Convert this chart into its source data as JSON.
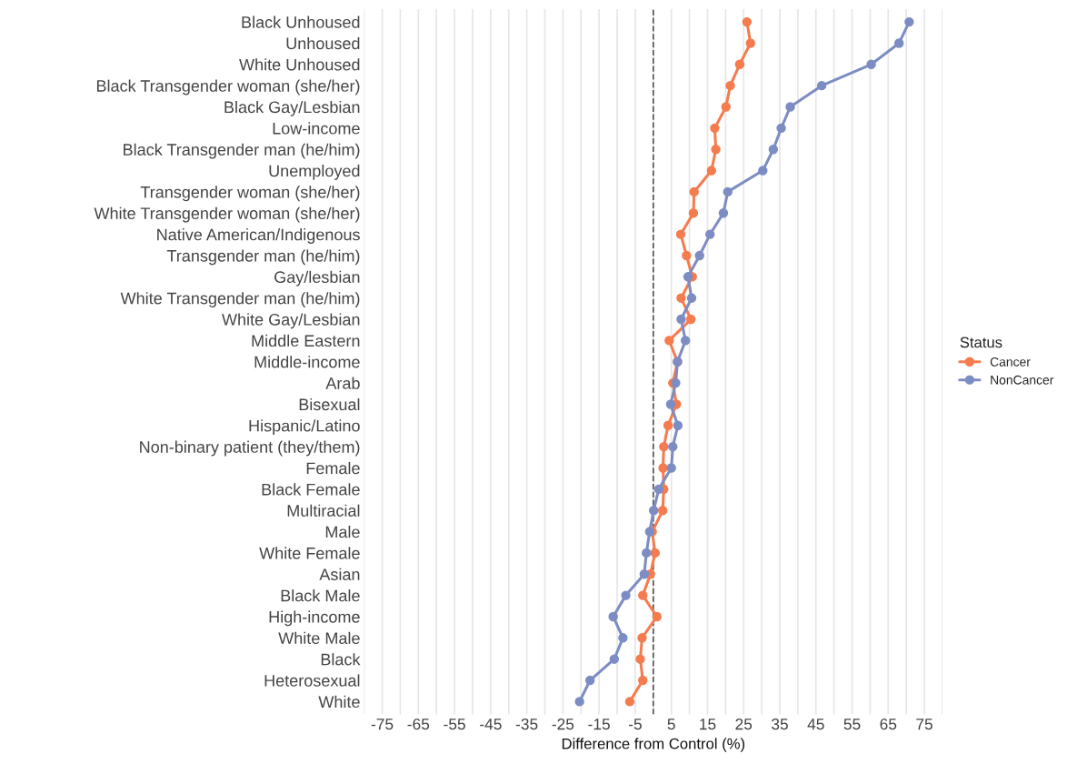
{
  "chart_data": {
    "type": "line",
    "orientation": "horizontal",
    "xlabel": "Difference from Control (%)",
    "legend_title": "Status",
    "categories": [
      "Black Unhoused",
      "Unhoused",
      "White Unhoused",
      "Black Transgender woman (she/her)",
      "Black Gay/Lesbian",
      "Low-income",
      "Black Transgender man (he/him)",
      "Unemployed",
      "Transgender woman (she/her)",
      "White Transgender woman (she/her)",
      "Native American/Indigenous",
      "Transgender man (he/him)",
      "Gay/lesbian",
      "White Transgender man (he/him)",
      "White Gay/Lesbian",
      "Middle Eastern",
      "Middle-income",
      "Arab",
      "Bisexual",
      "Hispanic/Latino",
      "Non-binary patient (they/them)",
      "Female",
      "Black Female",
      "Multiracial",
      "Male",
      "White Female",
      "Asian",
      "Black Male",
      "High-income",
      "White Male",
      "Black",
      "Heterosexual",
      "White"
    ],
    "series": [
      {
        "name": "Cancer",
        "color": "#f57c4f",
        "values": [
          25.9,
          26.9,
          23.9,
          21.3,
          20.1,
          17.0,
          17.3,
          16.1,
          11.3,
          11.1,
          7.6,
          9.2,
          10.8,
          7.7,
          10.4,
          4.4,
          6.7,
          5.4,
          6.4,
          4.1,
          2.9,
          2.7,
          2.9,
          2.6,
          -0.3,
          0.5,
          -0.8,
          -2.9,
          1.0,
          -3.1,
          -3.6,
          -2.9,
          -6.5
        ]
      },
      {
        "name": "NonCancer",
        "color": "#7d8dc4",
        "values": [
          70.8,
          68.0,
          60.3,
          46.6,
          37.9,
          35.4,
          33.2,
          30.3,
          20.6,
          19.4,
          15.7,
          12.8,
          9.6,
          10.6,
          7.7,
          8.9,
          6.7,
          6.2,
          4.8,
          6.8,
          5.4,
          5.0,
          1.5,
          0.1,
          -1.0,
          -1.9,
          -2.5,
          -7.6,
          -11.1,
          -8.4,
          -10.8,
          -17.5,
          -20.4
        ]
      }
    ],
    "xlim": [
      -80,
      80
    ],
    "xticks": [
      {
        "value": -80,
        "label": null
      },
      -75,
      {
        "value": -70,
        "label": null
      },
      -65,
      {
        "value": -60,
        "label": null
      },
      -55,
      {
        "value": -50,
        "label": null
      },
      -45,
      {
        "value": -40,
        "label": null
      },
      -35,
      {
        "value": -30,
        "label": null
      },
      -25,
      {
        "value": -20,
        "label": null
      },
      -15,
      {
        "value": -10,
        "label": null
      },
      -5,
      {
        "value": 0,
        "label": null
      },
      5,
      {
        "value": 10,
        "label": null
      },
      15,
      {
        "value": 20,
        "label": null
      },
      25,
      {
        "value": 30,
        "label": null
      },
      35,
      {
        "value": 40,
        "label": null
      },
      45,
      {
        "value": 50,
        "label": null
      },
      55,
      {
        "value": 60,
        "label": null
      },
      65,
      {
        "value": 70,
        "label": null
      },
      75,
      {
        "value": 80,
        "label": null
      }
    ],
    "ref_lines": [
      {
        "axis": "x",
        "value": 0,
        "color": "#555555",
        "line_style": "dashed"
      }
    ],
    "grid": "x",
    "legend": "right",
    "marker": "circle",
    "line_style": "solid"
  }
}
